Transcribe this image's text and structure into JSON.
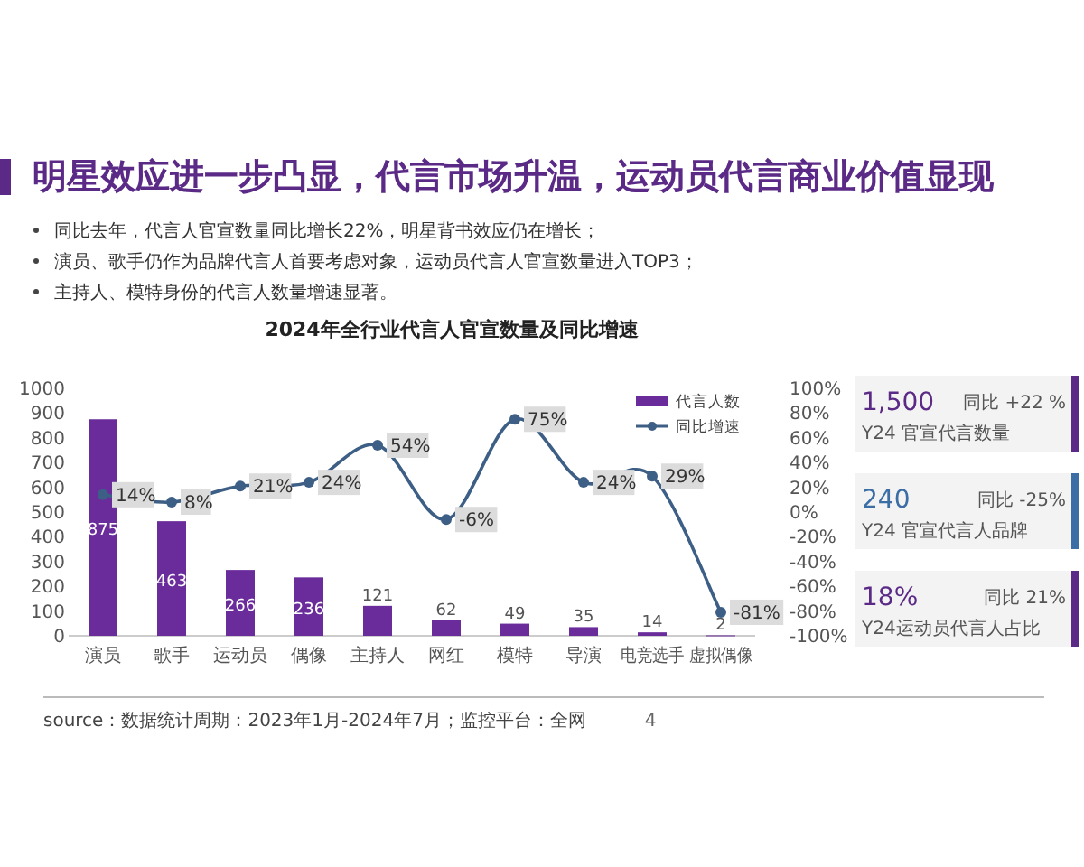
{
  "chart_data": [
    {
      "type": "bar",
      "title": "2024年全行业代言人官宣数量及同比增速",
      "annotations": [
        "明星效应进一步凸显，代言市场升温，运动员代言商业价值显现",
        "同比去年，代言人官宣数量同比增长22%，明星背书效应仍在增长；",
        "演员、歌手仍作为品牌代言人首要考虑对象，运动员代言人官宣数量进入TOP3；",
        "主持人、模特身份的代言人数量增速显著。",
        "source：数据统计周期：2023年1月-2024年7月；监控平台：全网",
        "4"
      ],
      "categories": [
        "演员",
        "歌手",
        "运动员",
        "偶像",
        "主持人",
        "网红",
        "模特",
        "导演",
        "电竞选手",
        "虚拟偶像"
      ],
      "series": [
        {
          "name": "代言人数",
          "color": "#6a2c9b",
          "values": [
            875,
            463,
            266,
            236,
            121,
            62,
            49,
            35,
            14,
            2
          ],
          "value_labels": [
            "875",
            "463",
            "266",
            "236",
            "121",
            "62",
            "49",
            "35",
            "14",
            "2"
          ]
        },
        {
          "name": "同比增速",
          "type": "line",
          "axis": "y2",
          "color": "#3d5f86",
          "values": [
            14,
            8,
            21,
            24,
            54,
            -6,
            75,
            24,
            29,
            -81
          ],
          "value_labels": [
            "14%",
            "8%",
            "21%",
            "24%",
            "54%",
            "-6%",
            "75%",
            "24%",
            "29%",
            "-81%"
          ]
        }
      ],
      "ylim": [
        0,
        1000
      ],
      "yticks": [
        0,
        100,
        200,
        300,
        400,
        500,
        600,
        700,
        800,
        900,
        1000
      ],
      "y2lim": [
        -100,
        100
      ],
      "y2ticks": [
        {
          "value": -100,
          "label": "-100%"
        },
        {
          "value": -80,
          "label": "-80%"
        },
        {
          "value": -60,
          "label": "-60%"
        },
        {
          "value": -40,
          "label": "-40%"
        },
        {
          "value": -20,
          "label": "-20%"
        },
        {
          "value": 0,
          "label": "0%"
        },
        {
          "value": 20,
          "label": "20%"
        },
        {
          "value": 40,
          "label": "40%"
        },
        {
          "value": 60,
          "label": "60%"
        },
        {
          "value": 80,
          "label": "80%"
        },
        {
          "value": 100,
          "label": "100%"
        }
      ],
      "legend": "top right",
      "marker": "circle"
    },
    {
      "type": "other",
      "annotations": [
        "1,500",
        "同比 +22 %",
        "Y24 官宣代言数量",
        "240",
        "同比 -25%",
        "Y24 官宣代言人品牌",
        "18%",
        "同比 21%",
        "Y24运动员代言人占比"
      ]
    }
  ]
}
